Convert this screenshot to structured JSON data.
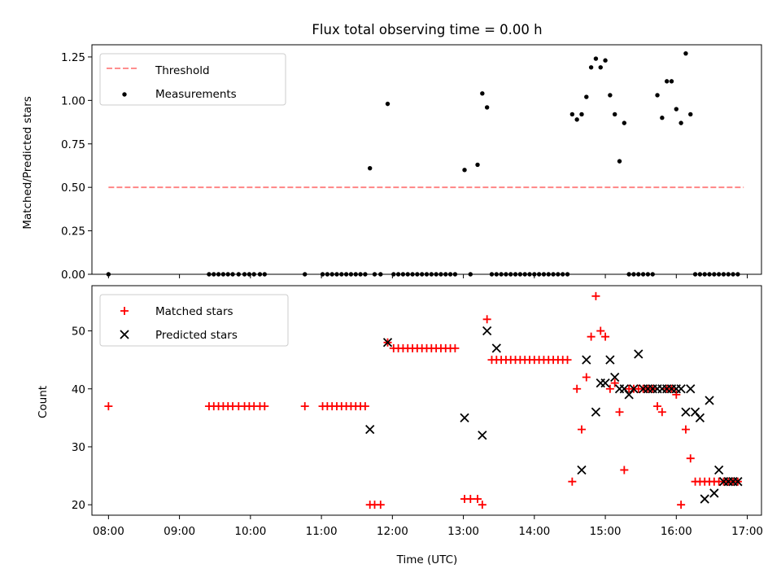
{
  "chart_data": [
    {
      "type": "scatter",
      "title": "Flux total observing time = 0.00 h",
      "xlabel": "",
      "ylabel": "Matched/Predicted stars",
      "xlim": [
        "07:46",
        "17:12"
      ],
      "ylim": [
        0,
        1.32
      ],
      "yticks": [
        0.0,
        0.25,
        0.5,
        0.75,
        1.0,
        1.25
      ],
      "ytick_labels": [
        "0.00",
        "0.25",
        "0.50",
        "0.75",
        "1.00",
        "1.25"
      ],
      "legend": {
        "placement": "top-left",
        "entries": [
          "Threshold",
          "Measurements"
        ]
      },
      "series": [
        {
          "name": "Threshold",
          "kind": "dashed-line",
          "color": "#ff7f7f",
          "x": [
            "08:00",
            "16:57"
          ],
          "y": [
            0.5,
            0.5
          ]
        },
        {
          "name": "Measurements",
          "kind": "dot",
          "color": "#000000",
          "x": [
            "08:00",
            "09:25",
            "09:29",
            "09:33",
            "09:37",
            "09:41",
            "09:45",
            "09:50",
            "09:55",
            "09:59",
            "10:03",
            "10:08",
            "10:12",
            "10:46",
            "11:01",
            "11:05",
            "11:09",
            "11:13",
            "11:17",
            "11:21",
            "11:25",
            "11:29",
            "11:33",
            "11:37",
            "11:41",
            "11:45",
            "11:50",
            "11:56",
            "12:01",
            "12:05",
            "12:09",
            "12:13",
            "12:17",
            "12:21",
            "12:25",
            "12:29",
            "12:33",
            "12:37",
            "12:41",
            "12:45",
            "12:49",
            "12:53",
            "13:01",
            "13:06",
            "13:12",
            "13:16",
            "13:20",
            "13:24",
            "13:28",
            "13:32",
            "13:36",
            "13:40",
            "13:44",
            "13:48",
            "13:52",
            "13:56",
            "14:00",
            "14:04",
            "14:08",
            "14:12",
            "14:16",
            "14:20",
            "14:24",
            "14:28",
            "14:32",
            "14:36",
            "14:40",
            "14:44",
            "14:48",
            "14:52",
            "14:56",
            "15:00",
            "15:04",
            "15:08",
            "15:12",
            "15:16",
            "15:20",
            "15:24",
            "15:28",
            "15:32",
            "15:36",
            "15:40",
            "15:44",
            "15:48",
            "15:52",
            "15:56",
            "16:00",
            "16:04",
            "16:08",
            "16:12",
            "16:16",
            "16:20",
            "16:24",
            "16:28",
            "16:32",
            "16:36",
            "16:40",
            "16:44",
            "16:48",
            "16:52"
          ],
          "y": [
            0,
            0,
            0,
            0,
            0,
            0,
            0,
            0,
            0,
            0,
            0,
            0,
            0,
            0,
            0,
            0,
            0,
            0,
            0,
            0,
            0,
            0,
            0,
            0,
            0.61,
            0,
            0,
            0.98,
            0,
            0,
            0,
            0,
            0,
            0,
            0,
            0,
            0,
            0,
            0,
            0,
            0,
            0,
            0.6,
            0,
            0.63,
            1.04,
            0.96,
            0,
            0,
            0,
            0,
            0,
            0,
            0,
            0,
            0,
            0,
            0,
            0,
            0,
            0,
            0,
            0,
            0,
            0.92,
            0.89,
            0.92,
            1.02,
            1.19,
            1.24,
            1.19,
            1.23,
            1.03,
            0.92,
            0.65,
            0.87,
            0,
            0,
            0,
            0,
            0,
            0,
            1.03,
            0.9,
            1.11,
            1.11,
            0.95,
            0.87,
            1.27,
            0.92,
            0,
            0,
            0,
            0,
            0,
            0,
            0,
            0,
            0,
            0
          ]
        }
      ]
    },
    {
      "type": "scatter",
      "title": "",
      "xlabel": "Time (UTC)",
      "ylabel": "Count",
      "xlim": [
        "07:46",
        "17:12"
      ],
      "ylim": [
        18.2,
        57.8
      ],
      "yticks": [
        20,
        30,
        40,
        50
      ],
      "ytick_labels": [
        "20",
        "30",
        "40",
        "50"
      ],
      "xticks": [
        "08:00",
        "09:00",
        "10:00",
        "11:00",
        "12:00",
        "13:00",
        "14:00",
        "15:00",
        "16:00",
        "17:00"
      ],
      "legend": {
        "placement": "top-left",
        "entries": [
          "Matched stars",
          "Predicted stars"
        ]
      },
      "series": [
        {
          "name": "Matched stars",
          "kind": "plus",
          "color": "#ff0000",
          "x": [
            "08:00",
            "09:25",
            "09:29",
            "09:33",
            "09:37",
            "09:41",
            "09:45",
            "09:50",
            "09:55",
            "09:59",
            "10:03",
            "10:08",
            "10:12",
            "10:46",
            "11:01",
            "11:05",
            "11:09",
            "11:13",
            "11:17",
            "11:21",
            "11:25",
            "11:29",
            "11:33",
            "11:37",
            "11:41",
            "11:45",
            "11:50",
            "11:56",
            "12:01",
            "12:05",
            "12:09",
            "12:13",
            "12:17",
            "12:21",
            "12:25",
            "12:29",
            "12:33",
            "12:37",
            "12:41",
            "12:45",
            "12:49",
            "12:53",
            "13:01",
            "13:06",
            "13:12",
            "13:16",
            "13:20",
            "13:24",
            "13:28",
            "13:32",
            "13:36",
            "13:40",
            "13:44",
            "13:48",
            "13:52",
            "13:56",
            "14:00",
            "14:04",
            "14:08",
            "14:12",
            "14:16",
            "14:20",
            "14:24",
            "14:28",
            "14:32",
            "14:36",
            "14:40",
            "14:44",
            "14:48",
            "14:52",
            "14:56",
            "15:00",
            "15:04",
            "15:08",
            "15:12",
            "15:16",
            "15:20",
            "15:24",
            "15:28",
            "15:32",
            "15:36",
            "15:40",
            "15:44",
            "15:48",
            "15:52",
            "15:56",
            "16:00",
            "16:04",
            "16:08",
            "16:12",
            "16:16",
            "16:20",
            "16:24",
            "16:28",
            "16:32",
            "16:36",
            "16:40",
            "16:44",
            "16:48",
            "16:52"
          ],
          "y": [
            37,
            37,
            37,
            37,
            37,
            37,
            37,
            37,
            37,
            37,
            37,
            37,
            37,
            37,
            37,
            37,
            37,
            37,
            37,
            37,
            37,
            37,
            37,
            37,
            20,
            20,
            20,
            48,
            47,
            47,
            47,
            47,
            47,
            47,
            47,
            47,
            47,
            47,
            47,
            47,
            47,
            47,
            21,
            21,
            21,
            20,
            52,
            45,
            45,
            45,
            45,
            45,
            45,
            45,
            45,
            45,
            45,
            45,
            45,
            45,
            45,
            45,
            45,
            45,
            24,
            40,
            33,
            42,
            49,
            56,
            50,
            49,
            40,
            41,
            36,
            26,
            40,
            40,
            40,
            40,
            40,
            40,
            37,
            36,
            40,
            40,
            39,
            20,
            33,
            28,
            24,
            24,
            24,
            24,
            24,
            24,
            24,
            24,
            24,
            24
          ]
        },
        {
          "name": "Predicted stars",
          "kind": "x",
          "color": "#000000",
          "x": [
            "11:41",
            "11:56",
            "13:01",
            "13:16",
            "13:20",
            "13:28",
            "14:40",
            "14:44",
            "14:52",
            "14:56",
            "15:00",
            "15:04",
            "15:08",
            "15:12",
            "15:16",
            "15:20",
            "15:24",
            "15:28",
            "15:32",
            "15:36",
            "15:40",
            "15:44",
            "15:48",
            "15:52",
            "15:56",
            "16:00",
            "16:04",
            "16:08",
            "16:12",
            "16:16",
            "16:20",
            "16:24",
            "16:28",
            "16:32",
            "16:36",
            "16:40",
            "16:44",
            "16:48",
            "16:52"
          ],
          "y": [
            33,
            48,
            35,
            32,
            50,
            47,
            26,
            45,
            36,
            41,
            41,
            45,
            42,
            40,
            40,
            39,
            40,
            46,
            40,
            40,
            40,
            40,
            40,
            40,
            40,
            40,
            40,
            36,
            40,
            36,
            35,
            21,
            38,
            22,
            26,
            24,
            24,
            24,
            24
          ]
        }
      ]
    }
  ]
}
